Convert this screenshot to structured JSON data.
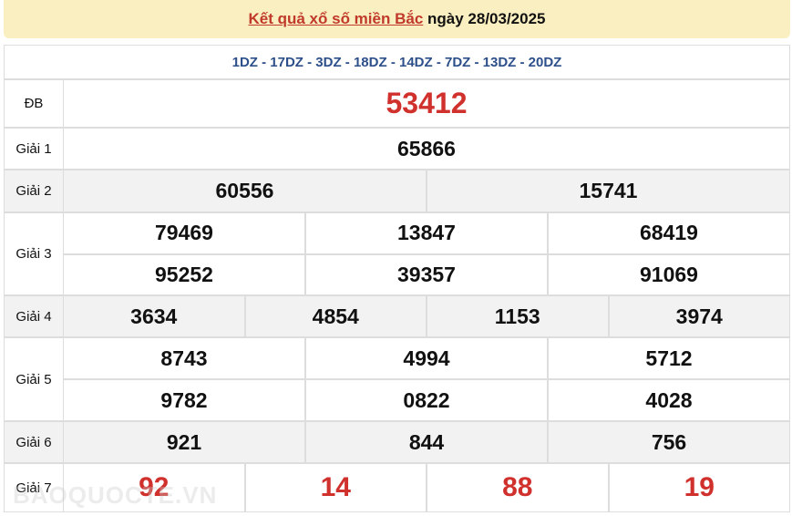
{
  "header": {
    "link_text": "Kết quả xổ số miền Bắc",
    "date_text": "ngày 28/03/2025"
  },
  "codes": "1DZ - 17DZ - 3DZ - 18DZ - 14DZ - 7DZ - 13DZ - 20DZ",
  "prizes": [
    {
      "label": "ĐB",
      "numbers": [
        "53412"
      ]
    },
    {
      "label": "Giải 1",
      "numbers": [
        "65866"
      ]
    },
    {
      "label": "Giải 2",
      "numbers": [
        "60556",
        "15741"
      ]
    },
    {
      "label": "Giải 3",
      "numbers": [
        "79469",
        "13847",
        "68419",
        "95252",
        "39357",
        "91069"
      ]
    },
    {
      "label": "Giải 4",
      "numbers": [
        "3634",
        "4854",
        "1153",
        "3974"
      ]
    },
    {
      "label": "Giải 5",
      "numbers": [
        "8743",
        "4994",
        "5712",
        "9782",
        "0822",
        "4028"
      ]
    },
    {
      "label": "Giải 6",
      "numbers": [
        "921",
        "844",
        "756"
      ]
    },
    {
      "label": "Giải 7",
      "numbers": [
        "92",
        "14",
        "88",
        "19"
      ]
    }
  ],
  "watermark": "BAOQUOCTE.VN"
}
